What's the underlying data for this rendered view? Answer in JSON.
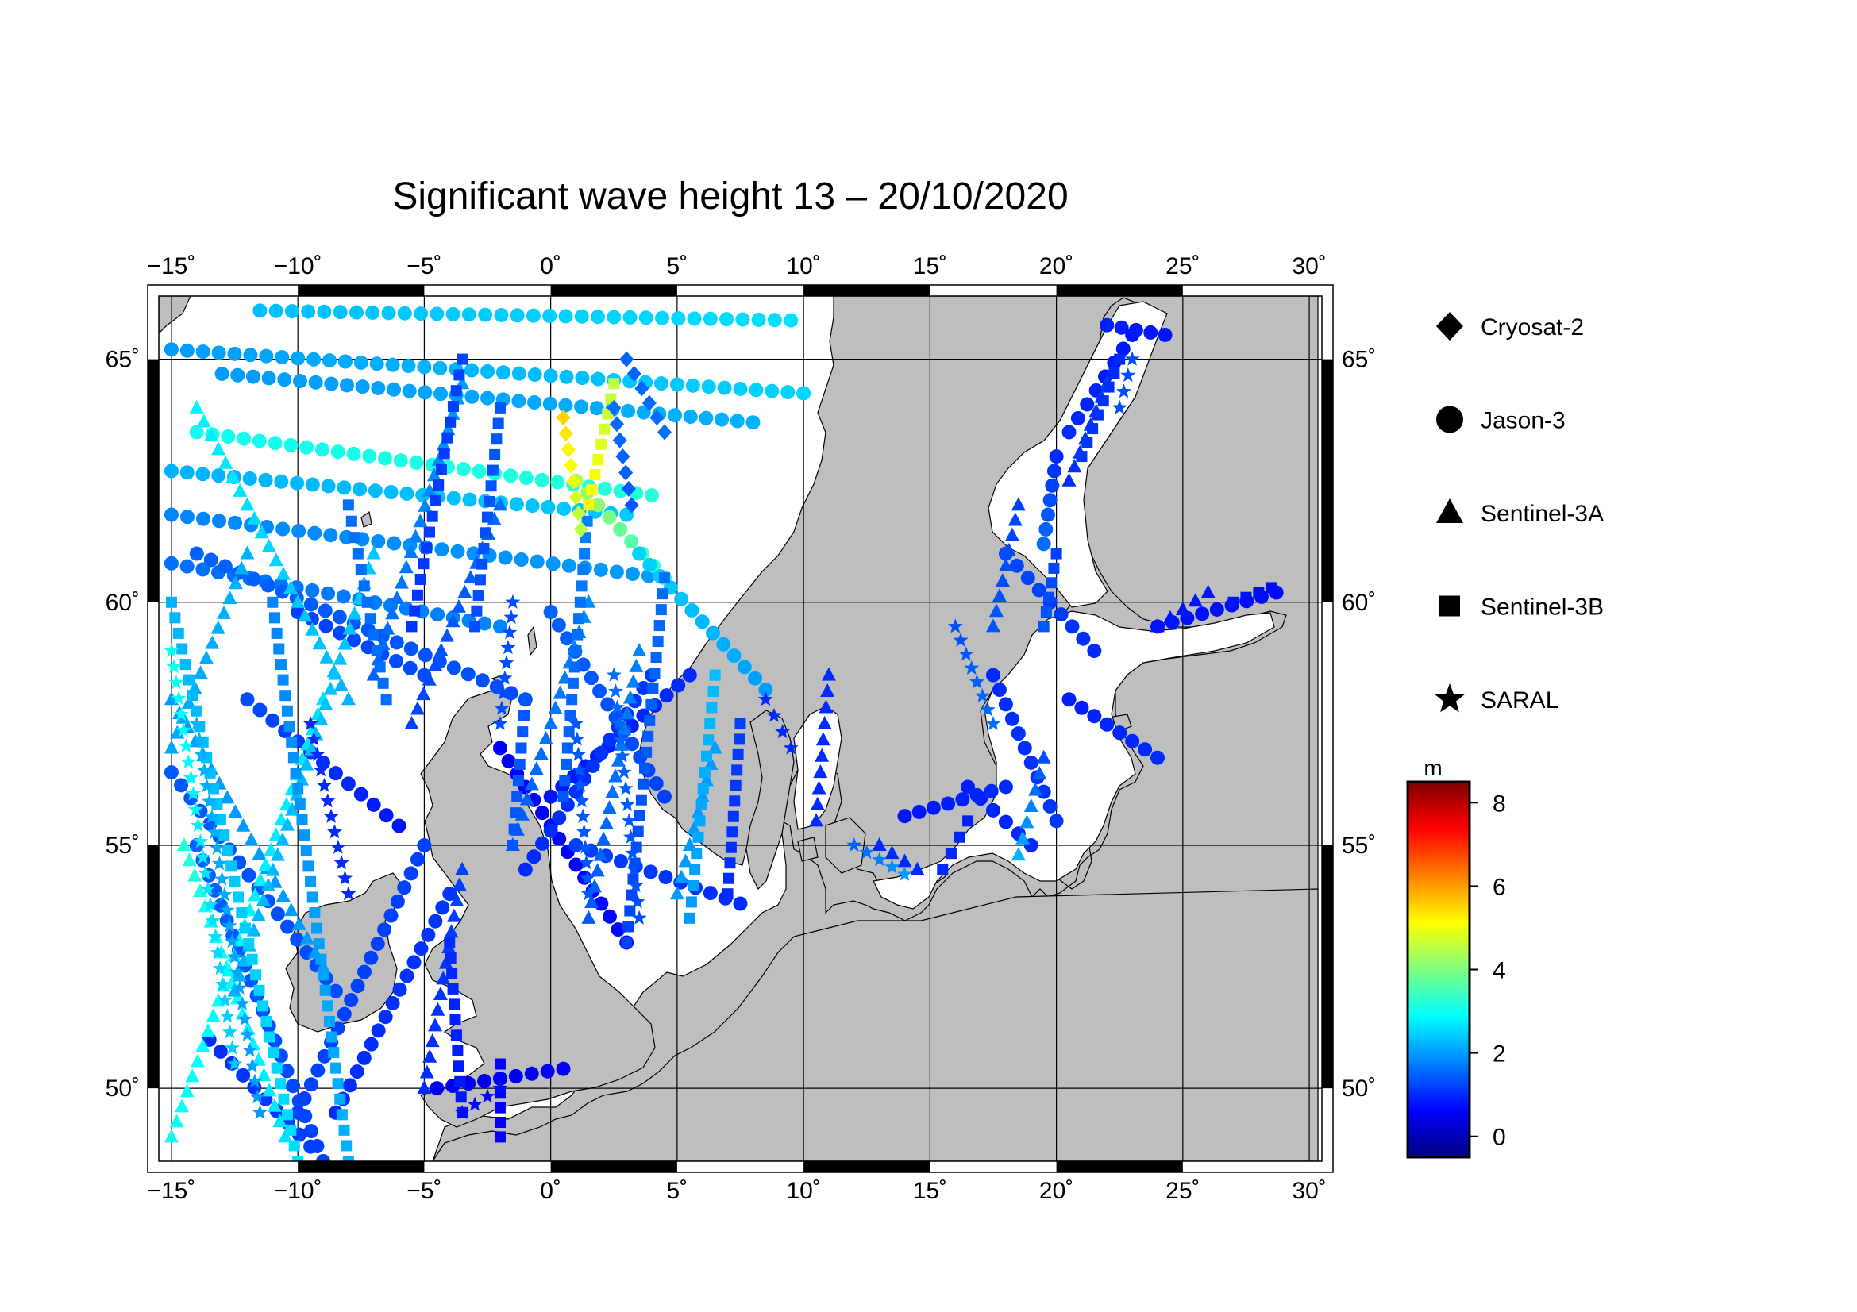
{
  "title": "Significant wave height 13 – 20/10/2020",
  "map": {
    "lon_range": [
      -15.5,
      30.5
    ],
    "lat_range": [
      48.5,
      66.3
    ],
    "lon_ticks": [
      "−15˚",
      "−10˚",
      "−5˚",
      "0˚",
      "5˚",
      "10˚",
      "15˚",
      "20˚",
      "25˚",
      "30˚"
    ],
    "lat_ticks": [
      "50˚",
      "55˚",
      "60˚",
      "65˚"
    ],
    "land_color": "#bebebe",
    "sea_color": "#ffffff",
    "grid": true
  },
  "legend": [
    {
      "label": "Cryosat-2",
      "icon": "diamond-icon"
    },
    {
      "label": "Jason-3",
      "icon": "circle-icon"
    },
    {
      "label": "Sentinel-3A",
      "icon": "triangle-icon"
    },
    {
      "label": "Sentinel-3B",
      "icon": "square-icon"
    },
    {
      "label": "SARAL",
      "icon": "star-icon"
    }
  ],
  "colorbar": {
    "unit": "m",
    "min": -0.5,
    "max": 8.5,
    "ticks": [
      "0",
      "2",
      "4",
      "6",
      "8"
    ],
    "colormap": "jet",
    "colors": [
      "#00007f",
      "#0000ff",
      "#007fff",
      "#00ffff",
      "#7fff7f",
      "#ffff00",
      "#ff7f00",
      "#ff0000",
      "#7f0000"
    ]
  },
  "chart_data": {
    "type": "scatter",
    "title": "Significant wave height 13 – 20/10/2020",
    "xlabel": "",
    "ylabel": "",
    "x_unit": "degrees longitude",
    "y_unit": "degrees latitude",
    "value_unit": "m",
    "xlim": [
      -15.5,
      30.5
    ],
    "ylim": [
      48.5,
      66.3
    ],
    "series": [
      {
        "name": "Jason-3",
        "marker": "circle",
        "tracks": [
          {
            "from": [
              -11.5,
              66.0
            ],
            "to": [
              9.5,
              65.8
            ],
            "h0": 2.3,
            "h1": 2.6
          },
          {
            "from": [
              -15.0,
              65.2
            ],
            "to": [
              10.0,
              64.3
            ],
            "h0": 2.0,
            "h1": 2.5
          },
          {
            "from": [
              -13.0,
              64.7
            ],
            "to": [
              8.0,
              63.7
            ],
            "h0": 2.0,
            "h1": 2.2
          },
          {
            "from": [
              -14.0,
              63.5
            ],
            "to": [
              4.0,
              62.2
            ],
            "h0": 3.0,
            "h1": 3.2
          },
          {
            "from": [
              -15.0,
              62.7
            ],
            "to": [
              3.0,
              61.8
            ],
            "h0": 2.2,
            "h1": 2.4
          },
          {
            "from": [
              -15.0,
              61.8
            ],
            "to": [
              4.5,
              60.5
            ],
            "h0": 1.8,
            "h1": 2.0
          },
          {
            "from": [
              -15.0,
              60.8
            ],
            "to": [
              -2.0,
              59.5
            ],
            "h0": 1.6,
            "h1": 1.8
          },
          {
            "from": [
              -14.0,
              61.0
            ],
            "to": [
              -1.0,
              58.0
            ],
            "h0": 1.5,
            "h1": 1.3
          },
          {
            "from": [
              -10.0,
              59.8
            ],
            "to": [
              -5.0,
              58.5
            ],
            "h0": 1.2,
            "h1": 1.3
          },
          {
            "from": [
              -15.0,
              56.5
            ],
            "to": [
              -8.5,
              52.0
            ],
            "h0": 1.4,
            "h1": 1.3
          },
          {
            "from": [
              -12.0,
              58.0
            ],
            "to": [
              -6.0,
              55.4
            ],
            "h0": 1.3,
            "h1": 0.8
          },
          {
            "from": [
              -14.0,
              55.0
            ],
            "to": [
              -9.0,
              48.5
            ],
            "h0": 1.5,
            "h1": 1.2
          },
          {
            "from": [
              -13.5,
              51.0
            ],
            "to": [
              -9.5,
              48.8
            ],
            "h0": 1.0,
            "h1": 1.2
          },
          {
            "from": [
              -10.0,
              49.5
            ],
            "to": [
              -5.0,
              55.0
            ],
            "h0": 1.2,
            "h1": 1.2
          },
          {
            "from": [
              -8.5,
              49.5
            ],
            "to": [
              -4.0,
              54.0
            ],
            "h0": 1.0,
            "h1": 1.1
          },
          {
            "from": [
              -2.0,
              57.0
            ],
            "to": [
              3.0,
              53.0
            ],
            "h0": 0.6,
            "h1": 0.7
          },
          {
            "from": [
              0.0,
              56.0
            ],
            "to": [
              5.5,
              58.5
            ],
            "h0": 0.8,
            "h1": 1.0
          },
          {
            "from": [
              1.0,
              55.0
            ],
            "to": [
              7.5,
              53.8
            ],
            "h0": 1.2,
            "h1": 1.0
          },
          {
            "from": [
              -1.0,
              54.5
            ],
            "to": [
              4.0,
              58.5
            ],
            "h0": 1.0,
            "h1": 1.1
          },
          {
            "from": [
              1.0,
              62.5
            ],
            "to": [
              4.5,
              60.5
            ],
            "h0": 4.4,
            "h1": 3.2
          },
          {
            "from": [
              3.5,
              61.0
            ],
            "to": [
              8.5,
              58.2
            ],
            "h0": 2.5,
            "h1": 2.0
          },
          {
            "from": [
              0.0,
              59.8
            ],
            "to": [
              4.5,
              56.0
            ],
            "h0": 1.5,
            "h1": 1.2
          },
          {
            "from": [
              -4.5,
              50.0
            ],
            "to": [
              0.5,
              50.4
            ],
            "h0": 0.5,
            "h1": 0.6
          },
          {
            "from": [
              23.0,
              65.5
            ],
            "to": [
              20.5,
              63.5
            ],
            "h0": 0.8,
            "h1": 1.0
          },
          {
            "from": [
              22.0,
              65.7
            ],
            "to": [
              24.3,
              65.5
            ],
            "h0": 0.9,
            "h1": 0.8
          },
          {
            "from": [
              20.0,
              63.0
            ],
            "to": [
              19.5,
              61.2
            ],
            "h0": 1.0,
            "h1": 1.6
          },
          {
            "from": [
              18.0,
              61.0
            ],
            "to": [
              21.5,
              59.0
            ],
            "h0": 1.3,
            "h1": 1.0
          },
          {
            "from": [
              24.0,
              59.5
            ],
            "to": [
              28.7,
              60.2
            ],
            "h0": 0.8,
            "h1": 0.7
          },
          {
            "from": [
              16.5,
              56.2
            ],
            "to": [
              19.0,
              55.0
            ],
            "h0": 0.9,
            "h1": 1.0
          },
          {
            "from": [
              14.0,
              55.6
            ],
            "to": [
              18.0,
              56.2
            ],
            "h0": 0.8,
            "h1": 1.0
          },
          {
            "from": [
              17.5,
              58.5
            ],
            "to": [
              20.0,
              55.5
            ],
            "h0": 1.0,
            "h1": 1.1
          },
          {
            "from": [
              20.5,
              58.0
            ],
            "to": [
              24.0,
              56.8
            ],
            "h0": 0.9,
            "h1": 1.0
          }
        ]
      },
      {
        "name": "Sentinel-3A",
        "marker": "triangle",
        "tracks": [
          {
            "from": [
              -14.0,
              64.0
            ],
            "to": [
              -8.0,
              58.0
            ],
            "h0": 2.8,
            "h1": 2.2
          },
          {
            "from": [
              -15.0,
              58.0
            ],
            "to": [
              -9.0,
              52.5
            ],
            "h0": 2.0,
            "h1": 2.0
          },
          {
            "from": [
              -14.5,
              55.0
            ],
            "to": [
              -10.5,
              49.0
            ],
            "h0": 3.2,
            "h1": 2.6
          },
          {
            "from": [
              -12.0,
              61.0
            ],
            "to": [
              -15.0,
              57.0
            ],
            "h0": 2.2,
            "h1": 2.1
          },
          {
            "from": [
              -9.0,
              58.0
            ],
            "to": [
              -15.0,
              49.0
            ],
            "h0": 2.6,
            "h1": 3.0
          },
          {
            "from": [
              -7.0,
              61.0
            ],
            "to": [
              -12.5,
              52.0
            ],
            "h0": 2.4,
            "h1": 2.2
          },
          {
            "from": [
              -3.5,
              64.5
            ],
            "to": [
              -7.0,
              58.5
            ],
            "h0": 2.0,
            "h1": 1.5
          },
          {
            "from": [
              -2.0,
              62.0
            ],
            "to": [
              -5.5,
              57.5
            ],
            "h0": 1.6,
            "h1": 1.2
          },
          {
            "from": [
              1.5,
              60.0
            ],
            "to": [
              -1.5,
              55.0
            ],
            "h0": 1.9,
            "h1": 1.4
          },
          {
            "from": [
              3.5,
              59.0
            ],
            "to": [
              1.5,
              53.5
            ],
            "h0": 1.8,
            "h1": 1.4
          },
          {
            "from": [
              -3.5,
              54.5
            ],
            "to": [
              -5.0,
              50.0
            ],
            "h0": 1.2,
            "h1": 1.0
          },
          {
            "from": [
              6.5,
              57.0
            ],
            "to": [
              5.0,
              54.0
            ],
            "h0": 2.0,
            "h1": 2.0
          },
          {
            "from": [
              11.0,
              58.5
            ],
            "to": [
              10.5,
              55.5
            ],
            "h0": 1.0,
            "h1": 1.0
          },
          {
            "from": [
              18.5,
              62.0
            ],
            "to": [
              17.5,
              59.5
            ],
            "h0": 1.2,
            "h1": 1.4
          },
          {
            "from": [
              22.0,
              64.5
            ],
            "to": [
              20.5,
              62.5
            ],
            "h0": 1.2,
            "h1": 1.0
          },
          {
            "from": [
              26.0,
              60.2
            ],
            "to": [
              24.0,
              59.5
            ],
            "h0": 0.8,
            "h1": 0.8
          },
          {
            "from": [
              19.5,
              56.8
            ],
            "to": [
              18.5,
              54.8
            ],
            "h0": 1.3,
            "h1": 2.2
          },
          {
            "from": [
              13.0,
              55.0
            ],
            "to": [
              14.5,
              54.5
            ],
            "h0": 1.0,
            "h1": 1.0
          }
        ]
      },
      {
        "name": "Sentinel-3B",
        "marker": "square",
        "tracks": [
          {
            "from": [
              -15.0,
              60.0
            ],
            "to": [
              -10.0,
              48.5
            ],
            "h0": 2.2,
            "h1": 2.6
          },
          {
            "from": [
              -11.0,
              60.0
            ],
            "to": [
              -8.0,
              48.5
            ],
            "h0": 1.8,
            "h1": 2.2
          },
          {
            "from": [
              -8.0,
              62.0
            ],
            "to": [
              -6.5,
              58.0
            ],
            "h0": 1.6,
            "h1": 1.6
          },
          {
            "from": [
              -3.5,
              65.0
            ],
            "to": [
              -5.5,
              59.5
            ],
            "h0": 1.2,
            "h1": 1.1
          },
          {
            "from": [
              -2.0,
              64.0
            ],
            "to": [
              -3.0,
              59.5
            ],
            "h0": 1.4,
            "h1": 1.3
          },
          {
            "from": [
              -1.0,
              58.0
            ],
            "to": [
              -1.5,
              55.0
            ],
            "h0": 1.4,
            "h1": 1.4
          },
          {
            "from": [
              1.5,
              62.0
            ],
            "to": [
              0.5,
              56.0
            ],
            "h0": 1.8,
            "h1": 1.4
          },
          {
            "from": [
              4.5,
              60.5
            ],
            "to": [
              3.0,
              53.0
            ],
            "h0": 1.6,
            "h1": 1.2
          },
          {
            "from": [
              6.5,
              58.5
            ],
            "to": [
              5.5,
              53.5
            ],
            "h0": 2.3,
            "h1": 2.0
          },
          {
            "from": [
              7.5,
              57.5
            ],
            "to": [
              7.0,
              54.0
            ],
            "h0": 1.2,
            "h1": 1.0
          },
          {
            "from": [
              2.5,
              64.5
            ],
            "to": [
              1.5,
              62.0
            ],
            "h0": 4.5,
            "h1": 5.2
          },
          {
            "from": [
              -4.0,
              53.0
            ],
            "to": [
              -3.5,
              49.5
            ],
            "h0": 1.0,
            "h1": 0.8
          },
          {
            "from": [
              -2.0,
              50.5
            ],
            "to": [
              -2.0,
              49.0
            ],
            "h0": 0.6,
            "h1": 0.6
          },
          {
            "from": [
              22.5,
              65.0
            ],
            "to": [
              21.0,
              63.0
            ],
            "h0": 1.0,
            "h1": 1.1
          },
          {
            "from": [
              20.0,
              61.0
            ],
            "to": [
              19.5,
              59.5
            ],
            "h0": 1.2,
            "h1": 1.4
          },
          {
            "from": [
              27.0,
              60.0
            ],
            "to": [
              28.5,
              60.3
            ],
            "h0": 0.8,
            "h1": 0.7
          },
          {
            "from": [
              16.5,
              55.5
            ],
            "to": [
              15.5,
              54.5
            ],
            "h0": 0.9,
            "h1": 1.0
          }
        ]
      },
      {
        "name": "SARAL",
        "marker": "star",
        "tracks": [
          {
            "from": [
              -15.0,
              59.0
            ],
            "to": [
              -12.5,
              50.5
            ],
            "h0": 3.0,
            "h1": 2.4
          },
          {
            "from": [
              -14.0,
              57.5
            ],
            "to": [
              -11.5,
              49.5
            ],
            "h0": 2.2,
            "h1": 2.0
          },
          {
            "from": [
              -9.5,
              57.5
            ],
            "to": [
              -8.0,
              54.0
            ],
            "h0": 1.0,
            "h1": 1.0
          },
          {
            "from": [
              -1.5,
              60.0
            ],
            "to": [
              -2.0,
              57.5
            ],
            "h0": 1.3,
            "h1": 1.3
          },
          {
            "from": [
              1.0,
              57.5
            ],
            "to": [
              1.5,
              54.0
            ],
            "h0": 1.4,
            "h1": 1.4
          },
          {
            "from": [
              2.5,
              58.5
            ],
            "to": [
              3.5,
              53.5
            ],
            "h0": 1.6,
            "h1": 1.3
          },
          {
            "from": [
              8.5,
              58.0
            ],
            "to": [
              9.5,
              57.0
            ],
            "h0": 1.0,
            "h1": 1.0
          },
          {
            "from": [
              12.0,
              55.0
            ],
            "to": [
              14.0,
              54.4
            ],
            "h0": 1.5,
            "h1": 2.0
          },
          {
            "from": [
              16.0,
              59.5
            ],
            "to": [
              17.5,
              57.5
            ],
            "h0": 1.3,
            "h1": 1.6
          },
          {
            "from": [
              -3.5,
              49.5
            ],
            "to": [
              -2.0,
              50.0
            ],
            "h0": 0.7,
            "h1": 0.7
          },
          {
            "from": [
              23.0,
              65.0
            ],
            "to": [
              22.5,
              64.0
            ],
            "h0": 1.3,
            "h1": 1.3
          }
        ]
      },
      {
        "name": "Cryosat-2",
        "marker": "diamond",
        "tracks": [
          {
            "from": [
              0.5,
              63.8
            ],
            "to": [
              1.2,
              61.5
            ],
            "h0": 5.5,
            "h1": 4.5
          },
          {
            "from": [
              2.5,
              64.0
            ],
            "to": [
              3.2,
              62.0
            ],
            "h0": 1.6,
            "h1": 1.4
          },
          {
            "from": [
              3.0,
              65.0
            ],
            "to": [
              4.5,
              63.5
            ],
            "h0": 1.5,
            "h1": 1.6
          }
        ]
      }
    ]
  }
}
